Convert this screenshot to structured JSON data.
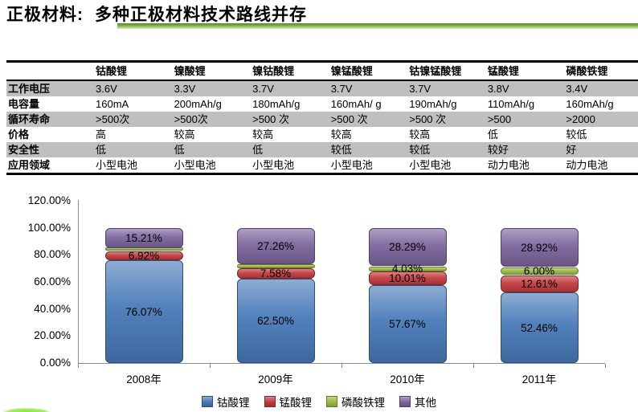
{
  "title": {
    "prefix": "正极材料:",
    "main": "多种正极材料技术路线并存"
  },
  "colors": {
    "underline_top": "#5a7f2b",
    "underline_mid": "#7fb646",
    "underline_bottom": "#d8ecc2",
    "row_stripe": "#BFBFBF",
    "axis": "#8C8C8C"
  },
  "table": {
    "columns": [
      "",
      "钴酸锂",
      "镍酸锂",
      "镍钴酸锂",
      "镍锰酸锂",
      "钴镍锰酸锂",
      "锰酸锂",
      "磷酸铁锂"
    ],
    "rows": [
      {
        "label": "工作电压",
        "values": [
          "3.6V",
          "3.3V",
          "3.7V",
          "3.7V",
          "3.7V",
          "3.8V",
          "3.4V"
        ]
      },
      {
        "label": "电容量",
        "values": [
          "160mA",
          "200mAh/g",
          "180mAh/g",
          "160mAh/ g",
          "190mAh/g",
          "110mAh/g",
          "160mAh/g"
        ]
      },
      {
        "label": "循环寿命",
        "values": [
          ">500次",
          ">500次",
          ">500 次",
          ">500 次",
          ">500 次",
          ">500",
          ">2000"
        ]
      },
      {
        "label": "价格",
        "values": [
          "高",
          "较高",
          "较高",
          "较高",
          "较高",
          "低",
          "较低"
        ]
      },
      {
        "label": "安全性",
        "values": [
          "低",
          "低",
          "低",
          "较低",
          "较低",
          "较好",
          "好"
        ]
      },
      {
        "label": "应用领域",
        "values": [
          "小型电池",
          "小型电池",
          "小型电池",
          "小型电池",
          "小型电池",
          "动力电池",
          "动力电池"
        ]
      }
    ]
  },
  "chart_data": {
    "type": "bar",
    "stacked": true,
    "categories": [
      "2008年",
      "2009年",
      "2010年",
      "2011年"
    ],
    "series": [
      {
        "name": "钴酸锂",
        "color": "#4779B8",
        "values": [
          76.07,
          62.5,
          57.67,
          52.46
        ],
        "labels": [
          "76.07%",
          "62.50%",
          "57.67%",
          "52.46%"
        ]
      },
      {
        "name": "锰酸锂",
        "color": "#C23B3E",
        "values": [
          6.92,
          7.58,
          10.01,
          12.61
        ],
        "labels": [
          "6.92%",
          "7.58%",
          "10.01%",
          "12.61%"
        ]
      },
      {
        "name": "磷酸铁锂",
        "color": "#9CBB44",
        "values": [
          1.8,
          2.66,
          4.03,
          6.0
        ],
        "labels": [
          null,
          null,
          "4.03%",
          "6.00%"
        ]
      },
      {
        "name": "其他",
        "color": "#7B649C",
        "values": [
          15.21,
          27.26,
          28.29,
          28.92
        ],
        "labels": [
          "15.21%",
          "27.26%",
          "28.29%",
          "28.92%"
        ]
      }
    ],
    "yticks": [
      "120.00%",
      "100.00%",
      "80.00%",
      "60.00%",
      "40.00%",
      "20.00%",
      "0.00%"
    ],
    "ylim": [
      0,
      120
    ],
    "grid": false,
    "legend_position": "bottom",
    "xlabel": "",
    "ylabel": ""
  }
}
